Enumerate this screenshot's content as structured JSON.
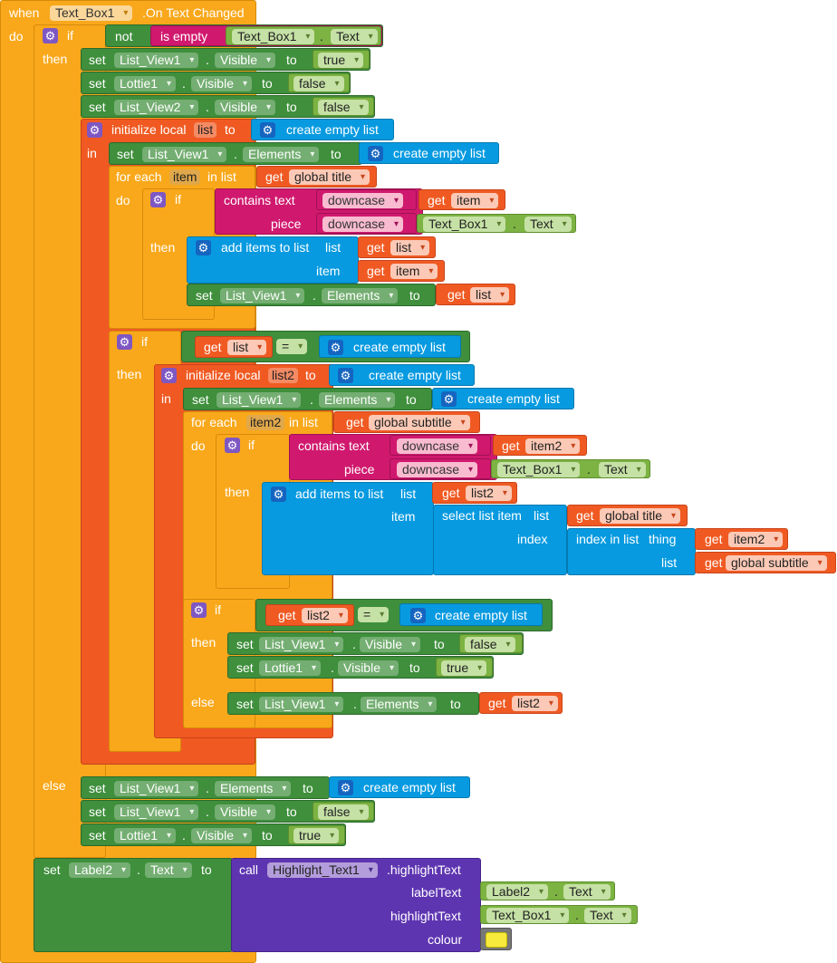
{
  "kw": {
    "when": "when",
    "do": "do",
    "if": "if",
    "then": "then",
    "else": "else",
    "in": "in",
    "set": "set",
    "to": "to",
    "not": "not",
    "is_empty": "is empty",
    "dot": ".",
    "initialize_local": "initialize local",
    "create_empty_list": "create empty list",
    "for_each": "for each",
    "in_list": "in list",
    "get": "get",
    "contains_text": "contains  text",
    "piece": "piece",
    "downcase": "downcase",
    "add_items_to_list": "add items to list",
    "list": "list",
    "item": "item",
    "eq": "=",
    "select_list_item": "select list item",
    "index": "index",
    "index_in_list": "index in list",
    "thing": "thing",
    "call": "call",
    "label_text": "labelText",
    "highlight_text_arg": "highlightText",
    "colour": "colour"
  },
  "event": {
    "component": "Text_Box1",
    "name": ".On Text Changed"
  },
  "comps": {
    "text_box1": "Text_Box1",
    "list_view1": "List_View1",
    "list_view2": "List_View2",
    "lottie1": "Lottie1",
    "label2": "Label2",
    "highlight": "Highlight_Text1"
  },
  "props": {
    "text": "Text",
    "visible": "Visible",
    "elements": "Elements"
  },
  "vals": {
    "true": "true",
    "false": "false"
  },
  "vars": {
    "list": "list",
    "list2": "list2",
    "item": "item",
    "item2": "item2",
    "global_title": "global title",
    "global_subtitle": "global subtitle"
  },
  "method": ".highlightText",
  "colors": {
    "event": "#f9a81b",
    "control": "#f05a22",
    "setter": "#3f8f3c",
    "getter": "#7cb342",
    "text": "#d0196e",
    "list": "#079ae0",
    "procedure": "#5e35b1",
    "swatch": "#f7ea3c"
  }
}
